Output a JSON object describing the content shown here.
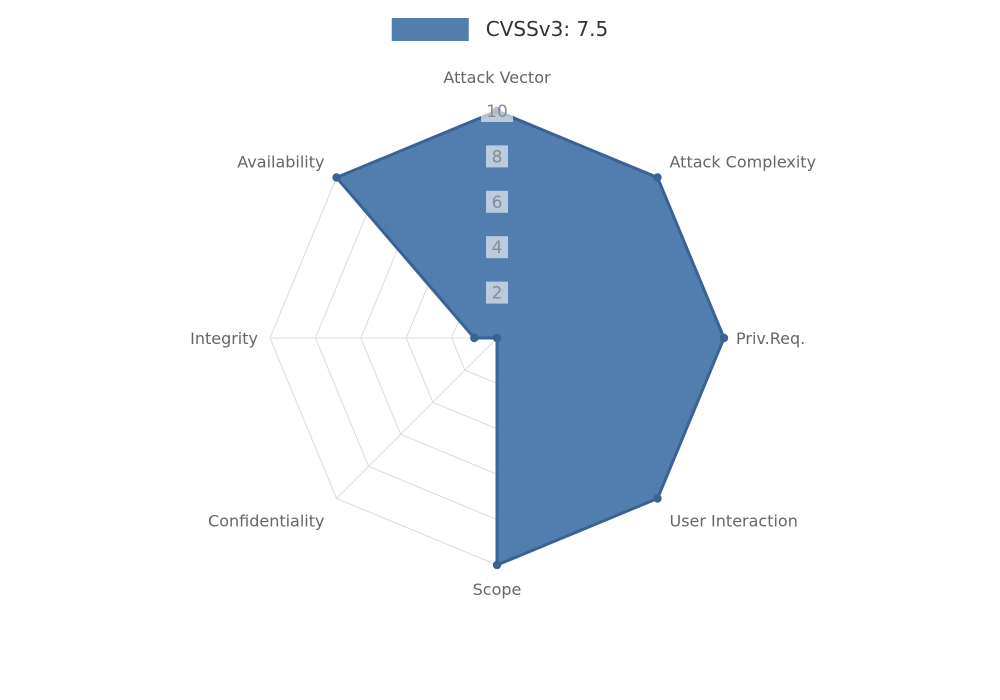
{
  "chart_data": {
    "type": "radar",
    "legend_label": "CVSSv3: 7.5",
    "legend_position": "top",
    "categories": [
      "Attack Vector",
      "Attack Complexity",
      "Priv.Req.",
      "User Interaction",
      "Scope",
      "Confidentiality",
      "Integrity",
      "Availability"
    ],
    "series": [
      {
        "name": "CVSSv3: 7.5",
        "values": [
          10,
          10,
          10,
          10,
          10,
          0,
          1,
          10
        ]
      }
    ],
    "ticks": [
      2,
      4,
      6,
      8,
      10
    ],
    "r_max": 10,
    "grid": true,
    "colors": {
      "fill": "#4474a8",
      "fill_opacity": 0.93,
      "stroke": "#3a6394",
      "point": "#3a6394",
      "grid": "#dcdcdc",
      "tick_text": "#8a8a8a",
      "tick_backdrop": "rgba(255,255,255,0.6)",
      "label_text": "#666666",
      "legend_text": "#333333",
      "background": "#ffffff"
    }
  }
}
